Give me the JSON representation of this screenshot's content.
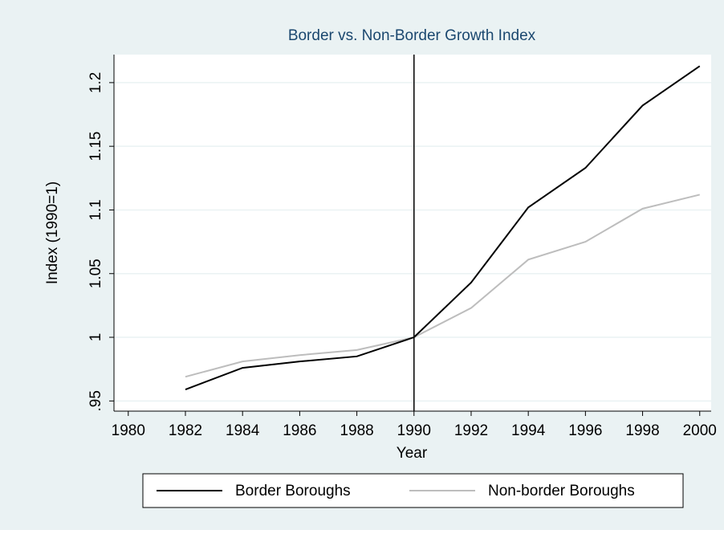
{
  "chart_data": {
    "type": "line",
    "title": "Border vs. Non-Border Growth Index",
    "x_label": "Year",
    "y_label": "Index (1990=1)",
    "x": [
      1982,
      1984,
      1986,
      1988,
      1990,
      1992,
      1994,
      1996,
      1998,
      2000
    ],
    "series": [
      {
        "name": "Border Boroughs",
        "color": "#000000",
        "values": [
          0.959,
          0.976,
          0.981,
          0.985,
          1,
          1.043,
          1.102,
          1.133,
          1.182,
          1.213
        ]
      },
      {
        "name": "Non-border Boroughs",
        "color": "#bdbdbd",
        "values": [
          0.969,
          0.981,
          0.986,
          0.99,
          1,
          1.023,
          1.061,
          1.075,
          1.101,
          1.112
        ]
      }
    ],
    "xlim": [
      1979.5,
      2000.4
    ],
    "xticks": [
      1980,
      1982,
      1984,
      1986,
      1988,
      1990,
      1992,
      1994,
      1996,
      1998,
      2000
    ],
    "ylim": [
      0.942,
      1.222
    ],
    "yticks": [
      {
        "value": 0.95,
        "label": ".95"
      },
      1,
      1.05,
      1.1,
      1.15,
      1.2
    ],
    "vline": 1990,
    "grid": true,
    "legend": "bottom"
  }
}
